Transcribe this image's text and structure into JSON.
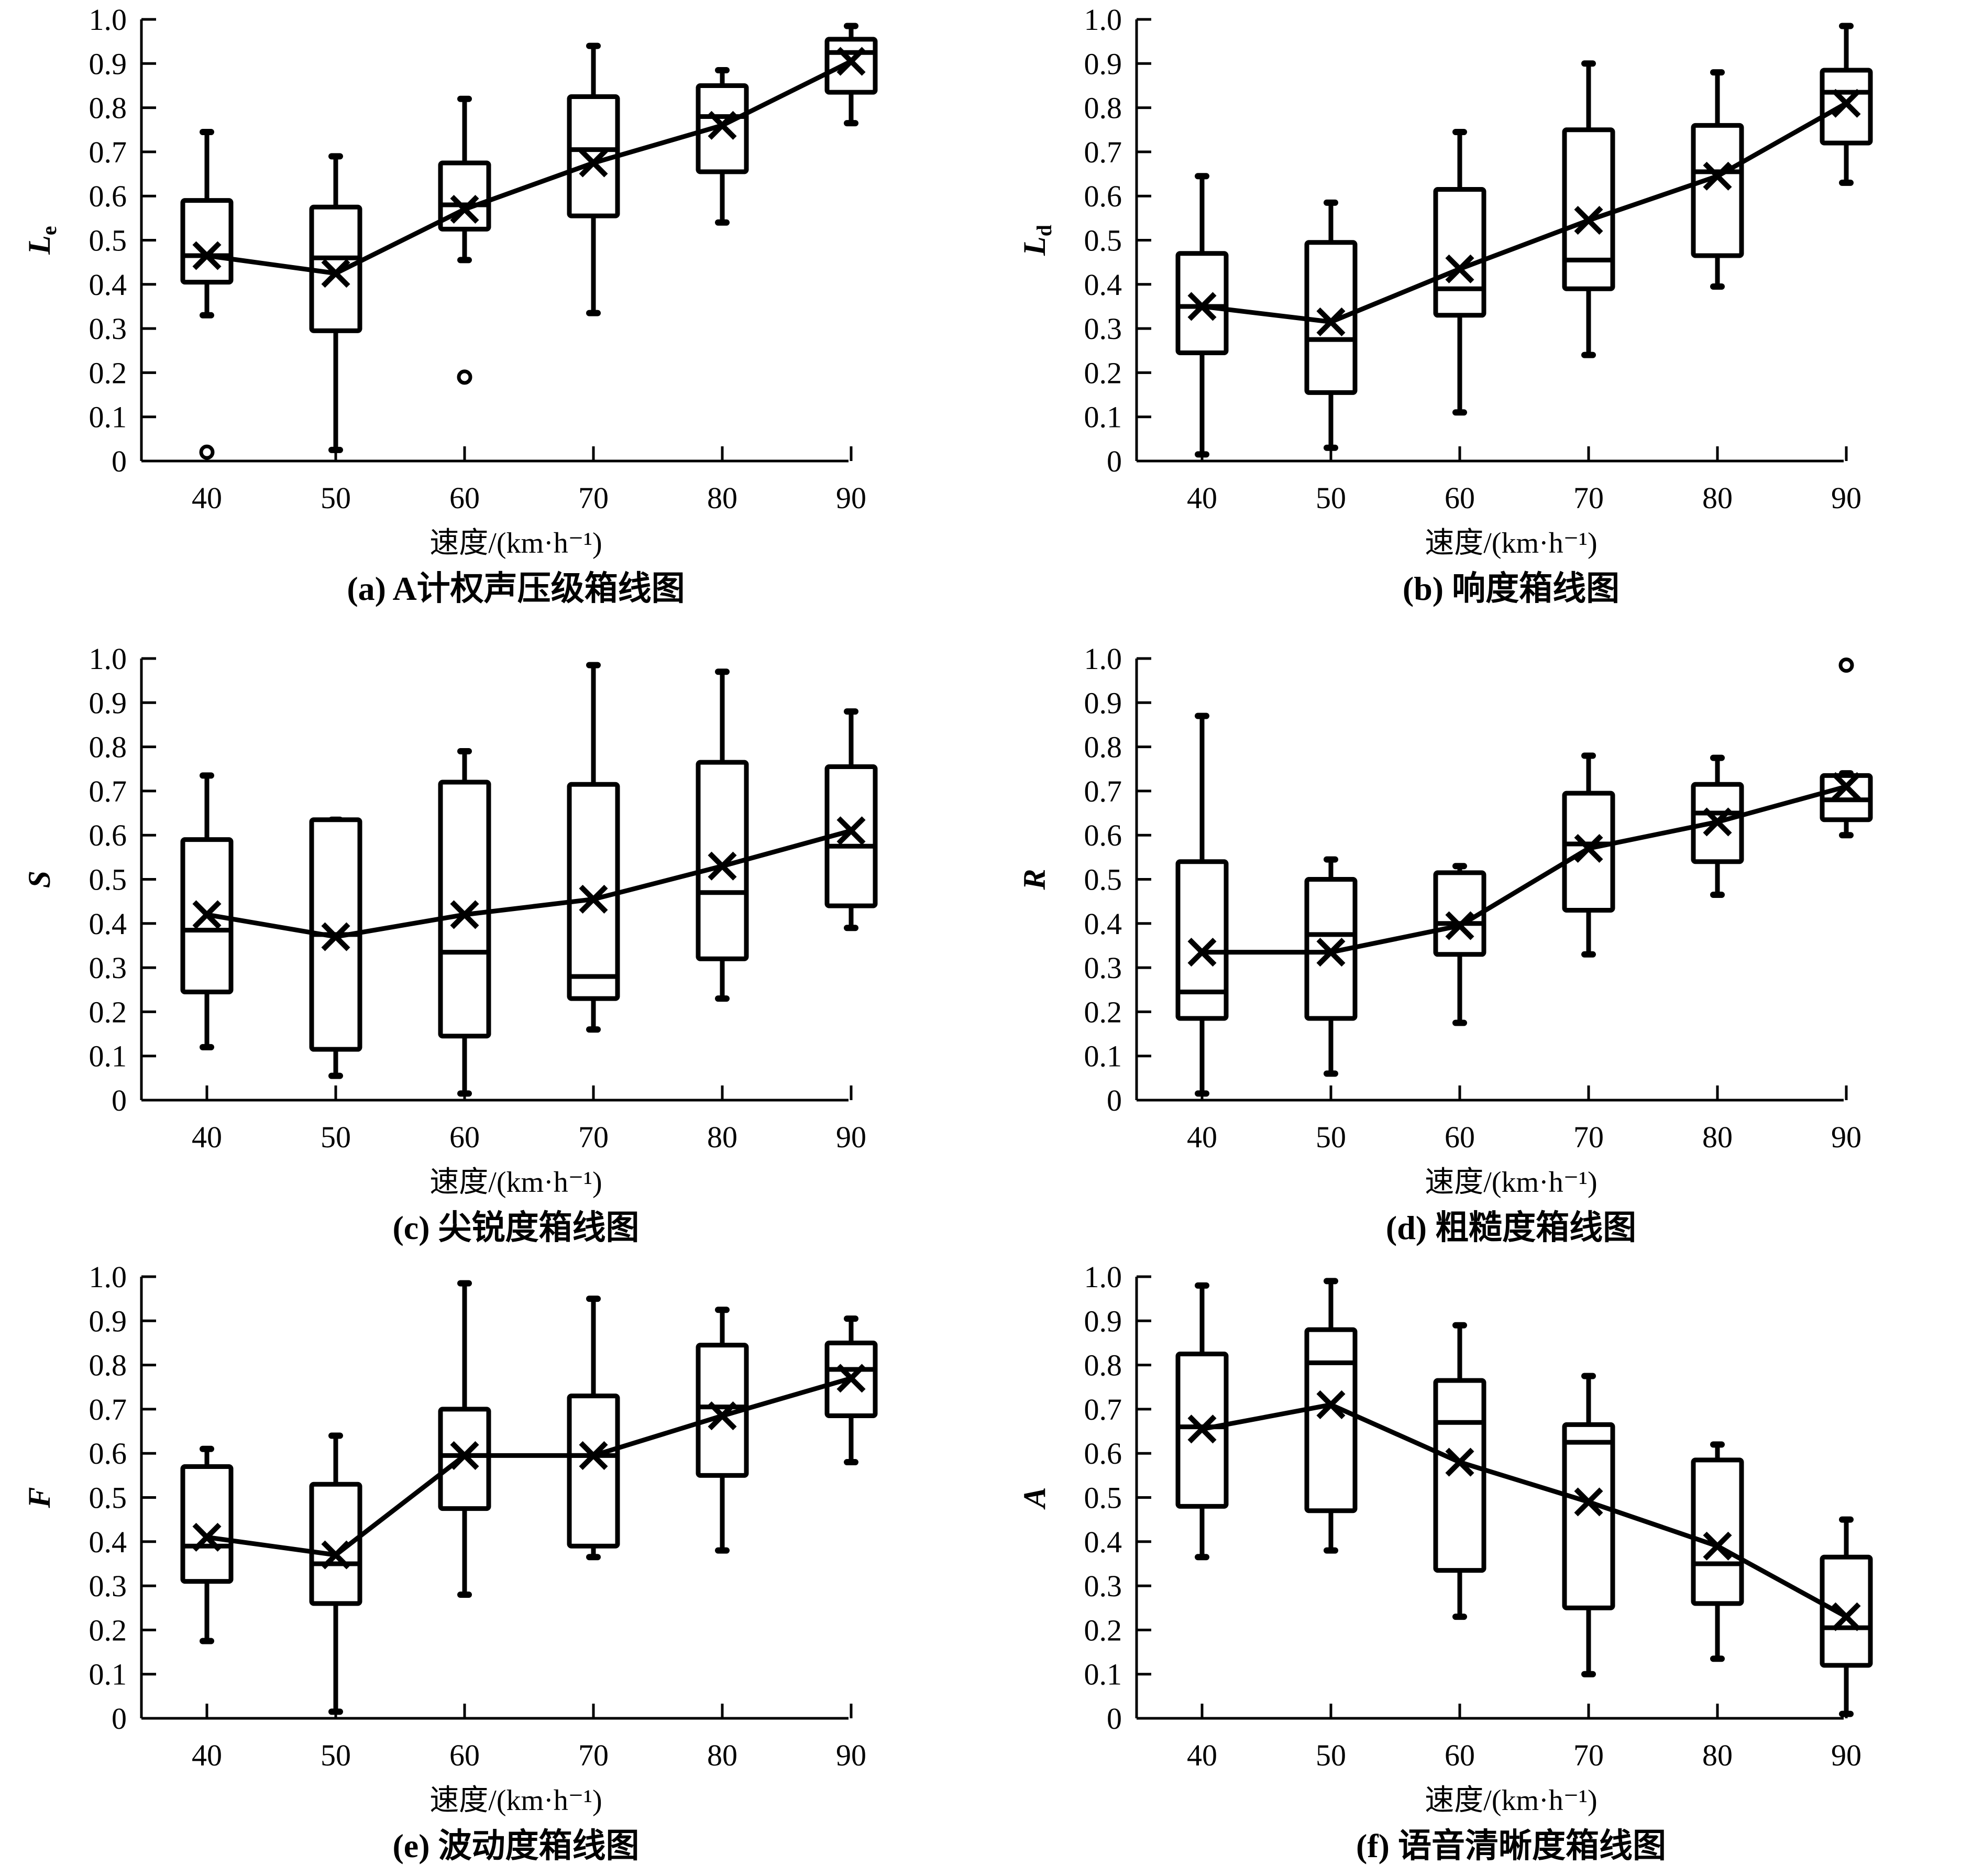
{
  "figure": {
    "xlabel": "速度/(km·h⁻¹)"
  },
  "chart_data": [
    {
      "type": "box",
      "id": "a",
      "title": "(a) A计权声压级箱线图",
      "caption_prefix": "(a)",
      "caption_text": "A计权声压级箱线图",
      "ylabel": "Le",
      "ylabel_main": "L",
      "ylabel_sub": "e",
      "xlabel": "速度/(km·h⁻¹)",
      "categories": [
        "40",
        "50",
        "60",
        "70",
        "80",
        "90"
      ],
      "ylim": [
        0,
        1.0
      ],
      "yticks": [
        "0",
        "0.1",
        "0.2",
        "0.3",
        "0.4",
        "0.5",
        "0.6",
        "0.7",
        "0.8",
        "0.9",
        "1.0"
      ],
      "boxes": [
        {
          "min": 0.33,
          "q1": 0.405,
          "median": 0.465,
          "q3": 0.59,
          "max": 0.745,
          "mean": 0.465,
          "outliers": [
            0.02
          ]
        },
        {
          "min": 0.025,
          "q1": 0.295,
          "median": 0.46,
          "q3": 0.575,
          "max": 0.69,
          "mean": 0.425,
          "outliers": []
        },
        {
          "min": 0.455,
          "q1": 0.525,
          "median": 0.58,
          "q3": 0.675,
          "max": 0.82,
          "mean": 0.57,
          "outliers": [
            0.19
          ]
        },
        {
          "min": 0.335,
          "q1": 0.555,
          "median": 0.705,
          "q3": 0.825,
          "max": 0.94,
          "mean": 0.675,
          "outliers": []
        },
        {
          "min": 0.54,
          "q1": 0.655,
          "median": 0.78,
          "q3": 0.85,
          "max": 0.885,
          "mean": 0.76,
          "outliers": []
        },
        {
          "min": 0.765,
          "q1": 0.835,
          "median": 0.925,
          "q3": 0.955,
          "max": 0.985,
          "mean": 0.905,
          "outliers": []
        }
      ]
    },
    {
      "type": "box",
      "id": "b",
      "title": "(b) 响度箱线图",
      "caption_prefix": "(b)",
      "caption_text": "响度箱线图",
      "ylabel": "Ld",
      "ylabel_main": "L",
      "ylabel_sub": "d",
      "xlabel": "速度/(km·h⁻¹)",
      "categories": [
        "40",
        "50",
        "60",
        "70",
        "80",
        "90"
      ],
      "ylim": [
        0,
        1.0
      ],
      "yticks": [
        "0",
        "0.1",
        "0.2",
        "0.3",
        "0.4",
        "0.5",
        "0.6",
        "0.7",
        "0.8",
        "0.9",
        "1.0"
      ],
      "boxes": [
        {
          "min": 0.015,
          "q1": 0.245,
          "median": 0.35,
          "q3": 0.47,
          "max": 0.645,
          "mean": 0.35,
          "outliers": []
        },
        {
          "min": 0.03,
          "q1": 0.155,
          "median": 0.275,
          "q3": 0.495,
          "max": 0.585,
          "mean": 0.315,
          "outliers": []
        },
        {
          "min": 0.11,
          "q1": 0.33,
          "median": 0.39,
          "q3": 0.615,
          "max": 0.745,
          "mean": 0.435,
          "outliers": []
        },
        {
          "min": 0.24,
          "q1": 0.39,
          "median": 0.455,
          "q3": 0.75,
          "max": 0.9,
          "mean": 0.545,
          "outliers": []
        },
        {
          "min": 0.395,
          "q1": 0.465,
          "median": 0.655,
          "q3": 0.76,
          "max": 0.88,
          "mean": 0.645,
          "outliers": []
        },
        {
          "min": 0.63,
          "q1": 0.72,
          "median": 0.835,
          "q3": 0.885,
          "max": 0.985,
          "mean": 0.81,
          "outliers": []
        }
      ]
    },
    {
      "type": "box",
      "id": "c",
      "title": "(c) 尖锐度箱线图",
      "caption_prefix": "(c)",
      "caption_text": "尖锐度箱线图",
      "ylabel": "S",
      "ylabel_main": "S",
      "ylabel_sub": "",
      "xlabel": "速度/(km·h⁻¹)",
      "categories": [
        "40",
        "50",
        "60",
        "70",
        "80",
        "90"
      ],
      "ylim": [
        0,
        1.0
      ],
      "yticks": [
        "0",
        "0.1",
        "0.2",
        "0.3",
        "0.4",
        "0.5",
        "0.6",
        "0.7",
        "0.8",
        "0.9",
        "1.0"
      ],
      "boxes": [
        {
          "min": 0.12,
          "q1": 0.245,
          "median": 0.385,
          "q3": 0.59,
          "max": 0.735,
          "mean": 0.42,
          "outliers": []
        },
        {
          "min": 0.055,
          "q1": 0.115,
          "median": 0.375,
          "q3": 0.635,
          "max": 0.635,
          "mean": 0.37,
          "outliers": []
        },
        {
          "min": 0.015,
          "q1": 0.145,
          "median": 0.335,
          "q3": 0.72,
          "max": 0.79,
          "mean": 0.42,
          "outliers": []
        },
        {
          "min": 0.16,
          "q1": 0.23,
          "median": 0.28,
          "q3": 0.715,
          "max": 0.985,
          "mean": 0.455,
          "outliers": []
        },
        {
          "min": 0.23,
          "q1": 0.32,
          "median": 0.47,
          "q3": 0.765,
          "max": 0.97,
          "mean": 0.53,
          "outliers": []
        },
        {
          "min": 0.39,
          "q1": 0.44,
          "median": 0.575,
          "q3": 0.755,
          "max": 0.88,
          "mean": 0.61,
          "outliers": []
        }
      ]
    },
    {
      "type": "box",
      "id": "d",
      "title": "(d) 粗糙度箱线图",
      "caption_prefix": "(d)",
      "caption_text": "粗糙度箱线图",
      "ylabel": "R",
      "ylabel_main": "R",
      "ylabel_sub": "",
      "xlabel": "速度/(km·h⁻¹)",
      "categories": [
        "40",
        "50",
        "60",
        "70",
        "80",
        "90"
      ],
      "ylim": [
        0,
        1.0
      ],
      "yticks": [
        "0",
        "0.1",
        "0.2",
        "0.3",
        "0.4",
        "0.5",
        "0.6",
        "0.7",
        "0.8",
        "0.9",
        "1.0"
      ],
      "boxes": [
        {
          "min": 0.015,
          "q1": 0.185,
          "median": 0.245,
          "q3": 0.54,
          "max": 0.87,
          "mean": 0.335,
          "outliers": []
        },
        {
          "min": 0.06,
          "q1": 0.185,
          "median": 0.375,
          "q3": 0.5,
          "max": 0.545,
          "mean": 0.335,
          "outliers": []
        },
        {
          "min": 0.175,
          "q1": 0.33,
          "median": 0.4,
          "q3": 0.515,
          "max": 0.53,
          "mean": 0.395,
          "outliers": []
        },
        {
          "min": 0.33,
          "q1": 0.43,
          "median": 0.58,
          "q3": 0.695,
          "max": 0.78,
          "mean": 0.57,
          "outliers": []
        },
        {
          "min": 0.465,
          "q1": 0.54,
          "median": 0.65,
          "q3": 0.715,
          "max": 0.775,
          "mean": 0.63,
          "outliers": []
        },
        {
          "min": 0.6,
          "q1": 0.635,
          "median": 0.68,
          "q3": 0.735,
          "max": 0.74,
          "mean": 0.71,
          "outliers": [
            0.985
          ]
        }
      ]
    },
    {
      "type": "box",
      "id": "e",
      "title": "(e) 波动度箱线图",
      "caption_prefix": "(e)",
      "caption_text": "波动度箱线图",
      "ylabel": "F",
      "ylabel_main": "F",
      "ylabel_sub": "",
      "xlabel": "速度/(km·h⁻¹)",
      "categories": [
        "40",
        "50",
        "60",
        "70",
        "80",
        "90"
      ],
      "ylim": [
        0,
        1.0
      ],
      "yticks": [
        "0",
        "0.1",
        "0.2",
        "0.3",
        "0.4",
        "0.5",
        "0.6",
        "0.7",
        "0.8",
        "0.9",
        "1.0"
      ],
      "boxes": [
        {
          "min": 0.175,
          "q1": 0.31,
          "median": 0.39,
          "q3": 0.57,
          "max": 0.61,
          "mean": 0.41,
          "outliers": []
        },
        {
          "min": 0.015,
          "q1": 0.26,
          "median": 0.35,
          "q3": 0.53,
          "max": 0.64,
          "mean": 0.37,
          "outliers": []
        },
        {
          "min": 0.28,
          "q1": 0.475,
          "median": 0.595,
          "q3": 0.7,
          "max": 0.985,
          "mean": 0.595,
          "outliers": []
        },
        {
          "min": 0.365,
          "q1": 0.39,
          "median": 0.595,
          "q3": 0.73,
          "max": 0.95,
          "mean": 0.595,
          "outliers": []
        },
        {
          "min": 0.38,
          "q1": 0.55,
          "median": 0.705,
          "q3": 0.845,
          "max": 0.925,
          "mean": 0.685,
          "outliers": []
        },
        {
          "min": 0.58,
          "q1": 0.685,
          "median": 0.79,
          "q3": 0.85,
          "max": 0.905,
          "mean": 0.77,
          "outliers": []
        }
      ]
    },
    {
      "type": "box",
      "id": "f",
      "title": "(f) 语音清晰度箱线图",
      "caption_prefix": "(f)",
      "caption_text": "语音清晰度箱线图",
      "ylabel": "A",
      "ylabel_main": "A",
      "ylabel_sub": "",
      "xlabel": "速度/(km·h⁻¹)",
      "categories": [
        "40",
        "50",
        "60",
        "70",
        "80",
        "90"
      ],
      "ylim": [
        0,
        1.0
      ],
      "yticks": [
        "0",
        "0.1",
        "0.2",
        "0.3",
        "0.4",
        "0.5",
        "0.6",
        "0.7",
        "0.8",
        "0.9",
        "1.0"
      ],
      "boxes": [
        {
          "min": 0.365,
          "q1": 0.48,
          "median": 0.66,
          "q3": 0.825,
          "max": 0.98,
          "mean": 0.655,
          "outliers": []
        },
        {
          "min": 0.38,
          "q1": 0.47,
          "median": 0.805,
          "q3": 0.88,
          "max": 0.99,
          "mean": 0.71,
          "outliers": []
        },
        {
          "min": 0.23,
          "q1": 0.335,
          "median": 0.67,
          "q3": 0.765,
          "max": 0.89,
          "mean": 0.58,
          "outliers": []
        },
        {
          "min": 0.1,
          "q1": 0.25,
          "median": 0.625,
          "q3": 0.665,
          "max": 0.775,
          "mean": 0.49,
          "outliers": []
        },
        {
          "min": 0.135,
          "q1": 0.26,
          "median": 0.35,
          "q3": 0.585,
          "max": 0.62,
          "mean": 0.39,
          "outliers": []
        },
        {
          "min": 0.01,
          "q1": 0.12,
          "median": 0.205,
          "q3": 0.365,
          "max": 0.45,
          "mean": 0.23,
          "outliers": []
        }
      ]
    }
  ]
}
